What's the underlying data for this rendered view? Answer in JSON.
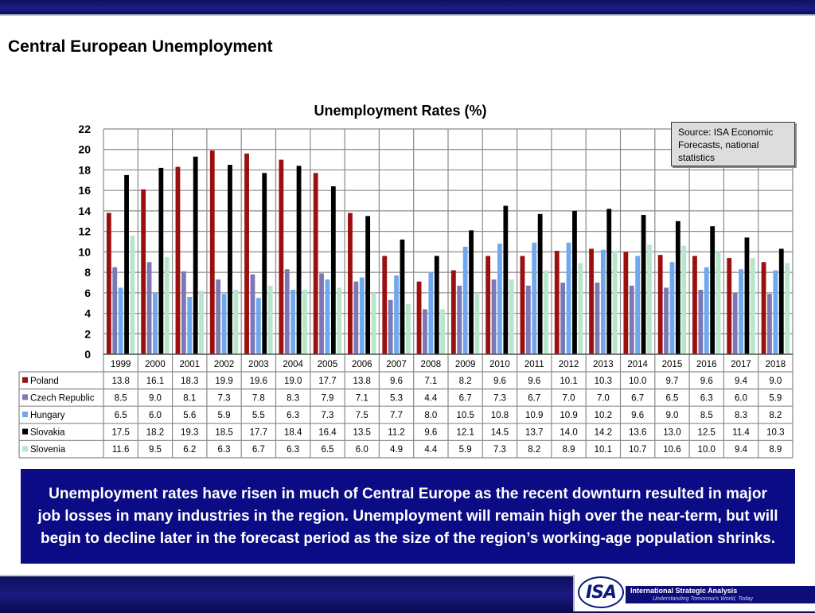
{
  "slide_title": "Central European Unemployment",
  "source_note": "Source: ISA Economic Forecasts, national statistics",
  "summary": "Unemployment rates have risen in much of Central Europe as the recent downturn resulted in major job losses in many industries in the region.  Unemployment will remain high over the near-term, but will begin to decline later in the forecast period as the size of the region’s working-age population shrinks.",
  "logo": {
    "letters": "ISA",
    "name": "International Strategic Analysis",
    "tagline": "Understanding Tomorrow's World, Today"
  },
  "colors": {
    "header_bar": "#14147a",
    "text_box": "#0b0b85"
  },
  "chart_data": {
    "type": "bar",
    "title": "Unemployment Rates (%)",
    "xlabel": "",
    "ylabel": "",
    "ylim": [
      0,
      22
    ],
    "yticks": [
      0,
      2,
      4,
      6,
      8,
      10,
      12,
      14,
      16,
      18,
      20,
      22
    ],
    "grid": true,
    "legend": "data-table",
    "categories": [
      "1999",
      "2000",
      "2001",
      "2002",
      "2003",
      "2004",
      "2005",
      "2006",
      "2007",
      "2008",
      "2009",
      "2010",
      "2011",
      "2012",
      "2013",
      "2014",
      "2015",
      "2016",
      "2017",
      "2018"
    ],
    "series": [
      {
        "name": "Poland",
        "color": "#9b0f0f",
        "values": [
          13.8,
          16.1,
          18.3,
          19.9,
          19.6,
          19.0,
          17.7,
          13.8,
          9.6,
          7.1,
          8.2,
          9.6,
          9.6,
          10.1,
          10.3,
          10.0,
          9.7,
          9.6,
          9.4,
          9.0
        ]
      },
      {
        "name": "Czech Republic",
        "color": "#7b78b5",
        "values": [
          8.5,
          9.0,
          8.1,
          7.3,
          7.8,
          8.3,
          7.9,
          7.1,
          5.3,
          4.4,
          6.7,
          7.3,
          6.7,
          7.0,
          7.0,
          6.7,
          6.5,
          6.3,
          6.0,
          5.9
        ]
      },
      {
        "name": "Hungary",
        "color": "#6fa8ee",
        "values": [
          6.5,
          6.0,
          5.6,
          5.9,
          5.5,
          6.3,
          7.3,
          7.5,
          7.7,
          8.0,
          10.5,
          10.8,
          10.9,
          10.9,
          10.2,
          9.6,
          9.0,
          8.5,
          8.3,
          8.2
        ]
      },
      {
        "name": "Slovakia",
        "color": "#000000",
        "values": [
          17.5,
          18.2,
          19.3,
          18.5,
          17.7,
          18.4,
          16.4,
          13.5,
          11.2,
          9.6,
          12.1,
          14.5,
          13.7,
          14.0,
          14.2,
          13.6,
          13.0,
          12.5,
          11.4,
          10.3
        ]
      },
      {
        "name": "Slovenia",
        "color": "#b6e6cc",
        "values": [
          11.6,
          9.5,
          6.2,
          6.3,
          6.7,
          6.3,
          6.5,
          6.0,
          4.9,
          4.4,
          5.9,
          7.3,
          8.2,
          8.9,
          10.1,
          10.7,
          10.6,
          10.0,
          9.4,
          8.9
        ]
      }
    ]
  }
}
